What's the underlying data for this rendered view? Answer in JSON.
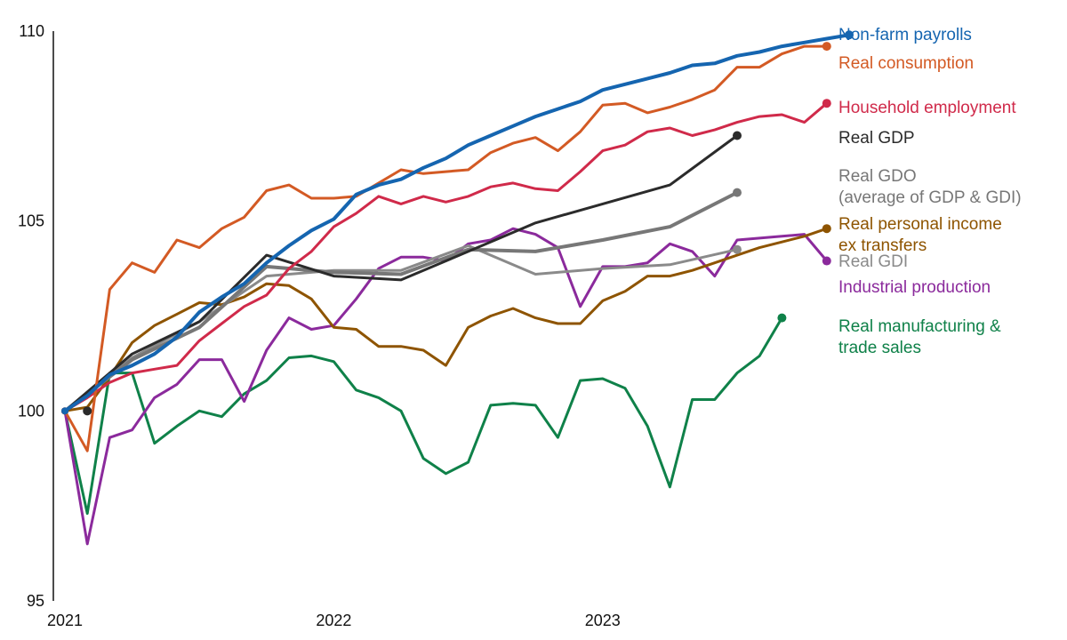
{
  "chart_data": {
    "type": "line",
    "title": "",
    "xlabel": "",
    "ylabel": "",
    "ylim": [
      95,
      110
    ],
    "x_range": [
      "2021-01",
      "2023-12"
    ],
    "y_ticks": [
      95,
      100,
      105,
      110
    ],
    "x_ticks": [
      {
        "label": "2021",
        "x": "2021-01"
      },
      {
        "label": "2022",
        "x": "2022-01"
      },
      {
        "label": "2023",
        "x": "2023-01"
      }
    ],
    "grid": false,
    "legend": "direct labels at right end of lines",
    "series": [
      {
        "key": "real_manufacturing",
        "name": "Real manufacturing & trade sales",
        "label_lines": [
          "Real manufacturing &",
          "trade sales"
        ],
        "color": "#0f8149",
        "x": [
          "2021-01",
          "2021-02",
          "2021-03",
          "2021-04",
          "2021-05",
          "2021-06",
          "2021-07",
          "2021-08",
          "2021-09",
          "2021-10",
          "2021-11",
          "2021-12",
          "2022-01",
          "2022-02",
          "2022-03",
          "2022-04",
          "2022-05",
          "2022-06",
          "2022-07",
          "2022-08",
          "2022-09",
          "2022-10",
          "2022-11",
          "2022-12",
          "2023-01",
          "2023-02",
          "2023-03",
          "2023-04",
          "2023-05",
          "2023-06",
          "2023-07",
          "2023-08",
          "2023-09"
        ],
        "y": [
          100.0,
          97.3,
          101.0,
          101.0,
          99.15,
          99.6,
          100.0,
          99.85,
          100.45,
          100.8,
          101.4,
          101.45,
          101.3,
          100.55,
          100.35,
          100.0,
          98.75,
          98.35,
          98.65,
          100.15,
          100.2,
          100.15,
          99.3,
          100.8,
          100.85,
          100.6,
          99.6,
          98.0,
          100.3,
          100.3,
          101.0,
          101.45,
          102.45
        ],
        "end_marker": true
      },
      {
        "key": "industrial_production",
        "name": "Industrial production",
        "label_lines": [
          "Industrial production"
        ],
        "color": "#8b2a9c",
        "x": [
          "2021-01",
          "2021-02",
          "2021-03",
          "2021-04",
          "2021-05",
          "2021-06",
          "2021-07",
          "2021-08",
          "2021-09",
          "2021-10",
          "2021-11",
          "2021-12",
          "2022-01",
          "2022-02",
          "2022-03",
          "2022-04",
          "2022-05",
          "2022-06",
          "2022-07",
          "2022-08",
          "2022-09",
          "2022-10",
          "2022-11",
          "2022-12",
          "2023-01",
          "2023-02",
          "2023-03",
          "2023-04",
          "2023-05",
          "2023-06",
          "2023-07",
          "2023-08",
          "2023-09",
          "2023-10",
          "2023-11"
        ],
        "y": [
          100.0,
          96.5,
          99.3,
          99.5,
          100.35,
          100.7,
          101.35,
          101.35,
          100.25,
          101.6,
          102.45,
          102.15,
          102.25,
          102.95,
          103.75,
          104.05,
          104.05,
          103.95,
          104.4,
          104.5,
          104.8,
          104.65,
          104.3,
          102.75,
          103.8,
          103.8,
          103.9,
          104.4,
          104.2,
          103.55,
          104.5,
          104.55,
          104.6,
          104.65,
          103.95
        ],
        "end_marker": true
      },
      {
        "key": "real_income",
        "name": "Real personal income ex transfers",
        "label_lines": [
          "Real personal income",
          "ex transfers"
        ],
        "color": "#8e5400",
        "x": [
          "2021-01",
          "2021-02",
          "2021-03",
          "2021-04",
          "2021-05",
          "2021-06",
          "2021-07",
          "2021-08",
          "2021-09",
          "2021-10",
          "2021-11",
          "2021-12",
          "2022-01",
          "2022-02",
          "2022-03",
          "2022-04",
          "2022-05",
          "2022-06",
          "2022-07",
          "2022-08",
          "2022-09",
          "2022-10",
          "2022-11",
          "2022-12",
          "2023-01",
          "2023-02",
          "2023-03",
          "2023-04",
          "2023-05",
          "2023-06",
          "2023-07",
          "2023-08",
          "2023-09",
          "2023-10",
          "2023-11"
        ],
        "y": [
          100.0,
          100.1,
          100.9,
          101.8,
          102.25,
          102.55,
          102.85,
          102.8,
          103.0,
          103.35,
          103.3,
          102.95,
          102.2,
          102.15,
          101.7,
          101.7,
          101.6,
          101.2,
          102.2,
          102.5,
          102.7,
          102.45,
          102.3,
          102.3,
          102.9,
          103.15,
          103.55,
          103.55,
          103.7,
          103.9,
          104.1,
          104.3,
          104.45,
          104.6,
          104.8
        ],
        "end_marker": true
      },
      {
        "key": "real_gdi",
        "name": "Real GDI",
        "label_lines": [
          "Real GDI"
        ],
        "color": "#8a8a8a",
        "x": [
          "2021-01",
          "2021-04",
          "2021-07",
          "2021-10",
          "2022-01",
          "2022-04",
          "2022-07",
          "2022-10",
          "2023-01",
          "2023-04",
          "2023-07"
        ],
        "y": [
          100.0,
          101.4,
          102.35,
          103.55,
          103.7,
          103.7,
          104.35,
          103.6,
          103.75,
          103.85,
          104.25
        ],
        "end_marker": true
      },
      {
        "key": "real_gdo",
        "name": "Real GDO (average of GDP & GDI)",
        "label_lines": [
          "Real GDO",
          "(average of GDP & GDI)"
        ],
        "color": "#777777",
        "x": [
          "2021-01",
          "2021-04",
          "2021-07",
          "2021-10",
          "2022-01",
          "2022-04",
          "2022-07",
          "2022-10",
          "2023-01",
          "2023-04",
          "2023-07"
        ],
        "y": [
          100.0,
          101.35,
          102.2,
          103.8,
          103.65,
          103.6,
          104.25,
          104.2,
          104.5,
          104.85,
          105.75
        ],
        "end_marker": true
      },
      {
        "key": "real_gdp",
        "name": "Real GDP",
        "label_lines": [
          "Real GDP"
        ],
        "color": "#2b2b2b",
        "x": [
          "2021-01",
          "2021-04",
          "2021-07",
          "2021-10",
          "2022-01",
          "2022-04",
          "2022-07",
          "2022-10",
          "2023-01",
          "2023-04",
          "2023-07"
        ],
        "y": [
          100.0,
          101.5,
          102.35,
          104.1,
          103.55,
          103.45,
          104.2,
          104.95,
          105.45,
          105.95,
          107.25
        ],
        "end_marker": true
      },
      {
        "key": "household_employment",
        "name": "Household employment",
        "label_lines": [
          "Household employment"
        ],
        "color": "#d02a4a",
        "x": [
          "2021-01",
          "2021-02",
          "2021-03",
          "2021-04",
          "2021-05",
          "2021-06",
          "2021-07",
          "2021-08",
          "2021-09",
          "2021-10",
          "2021-11",
          "2021-12",
          "2022-01",
          "2022-02",
          "2022-03",
          "2022-04",
          "2022-05",
          "2022-06",
          "2022-07",
          "2022-08",
          "2022-09",
          "2022-10",
          "2022-11",
          "2022-12",
          "2023-01",
          "2023-02",
          "2023-03",
          "2023-04",
          "2023-05",
          "2023-06",
          "2023-07",
          "2023-08",
          "2023-09",
          "2023-10",
          "2023-11"
        ],
        "y": [
          100.0,
          100.35,
          100.75,
          101.0,
          101.1,
          101.2,
          101.85,
          102.3,
          102.75,
          103.05,
          103.75,
          104.2,
          104.85,
          105.2,
          105.65,
          105.45,
          105.65,
          105.5,
          105.65,
          105.9,
          106.0,
          105.85,
          105.8,
          106.3,
          106.85,
          107.0,
          107.35,
          107.45,
          107.25,
          107.4,
          107.6,
          107.75,
          107.8,
          107.6,
          108.1
        ],
        "end_marker": true
      },
      {
        "key": "real_consumption",
        "name": "Real consumption",
        "label_lines": [
          "Real consumption"
        ],
        "color": "#d35a24",
        "x": [
          "2021-01",
          "2021-02",
          "2021-03",
          "2021-04",
          "2021-05",
          "2021-06",
          "2021-07",
          "2021-08",
          "2021-09",
          "2021-10",
          "2021-11",
          "2021-12",
          "2022-01",
          "2022-02",
          "2022-03",
          "2022-04",
          "2022-05",
          "2022-06",
          "2022-07",
          "2022-08",
          "2022-09",
          "2022-10",
          "2022-11",
          "2022-12",
          "2023-01",
          "2023-02",
          "2023-03",
          "2023-04",
          "2023-05",
          "2023-06",
          "2023-07",
          "2023-08",
          "2023-09",
          "2023-10",
          "2023-11"
        ],
        "y": [
          100.0,
          98.95,
          103.2,
          103.9,
          103.65,
          104.5,
          104.3,
          104.8,
          105.1,
          105.8,
          105.95,
          105.6,
          105.6,
          105.65,
          106.0,
          106.35,
          106.25,
          106.3,
          106.35,
          106.8,
          107.05,
          107.2,
          106.85,
          107.35,
          108.05,
          108.1,
          107.85,
          108.0,
          108.2,
          108.45,
          109.05,
          109.05,
          109.4,
          109.6,
          109.6
        ],
        "end_marker": true
      },
      {
        "key": "nonfarm_payrolls",
        "name": "Non-farm payrolls",
        "label_lines": [
          "Non-farm payrolls"
        ],
        "color": "#1565b0",
        "x": [
          "2021-01",
          "2021-02",
          "2021-03",
          "2021-04",
          "2021-05",
          "2021-06",
          "2021-07",
          "2021-08",
          "2021-09",
          "2021-10",
          "2021-11",
          "2021-12",
          "2022-01",
          "2022-02",
          "2022-03",
          "2022-04",
          "2022-05",
          "2022-06",
          "2022-07",
          "2022-08",
          "2022-09",
          "2022-10",
          "2022-11",
          "2022-12",
          "2023-01",
          "2023-02",
          "2023-03",
          "2023-04",
          "2023-05",
          "2023-06",
          "2023-07",
          "2023-08",
          "2023-09",
          "2023-10",
          "2023-11",
          "2023-12"
        ],
        "y": [
          100.0,
          100.4,
          100.95,
          101.2,
          101.5,
          101.95,
          102.6,
          103.0,
          103.35,
          103.9,
          104.35,
          104.75,
          105.05,
          105.7,
          105.95,
          106.1,
          106.4,
          106.65,
          107.0,
          107.25,
          107.5,
          107.75,
          107.95,
          108.15,
          108.45,
          108.6,
          108.75,
          108.9,
          109.1,
          109.15,
          109.35,
          109.45,
          109.6,
          109.7,
          109.8,
          109.9
        ],
        "end_marker": true
      }
    ]
  }
}
